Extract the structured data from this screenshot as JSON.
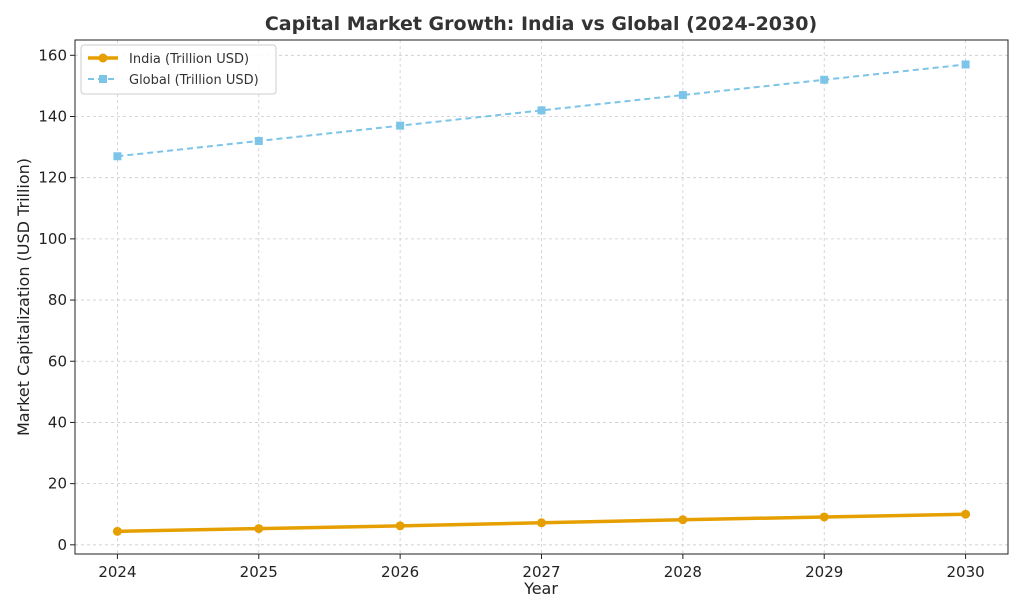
{
  "chart_data": {
    "type": "line",
    "title": "Capital Market Growth: India vs Global (2024-2030)",
    "xlabel": "Year",
    "ylabel": "Market Capitalization (USD Trillion)",
    "x": [
      2024,
      2025,
      2026,
      2027,
      2028,
      2029,
      2030
    ],
    "x_tick_labels": [
      "2024",
      "2025",
      "2026",
      "2027",
      "2028",
      "2029",
      "2030"
    ],
    "ylim": [
      -3,
      165
    ],
    "y_ticks": [
      0,
      20,
      40,
      60,
      80,
      100,
      120,
      140,
      160
    ],
    "y_tick_labels": [
      "0",
      "20",
      "40",
      "60",
      "80",
      "100",
      "120",
      "140",
      "160"
    ],
    "grid": true,
    "legend_position": "top-left",
    "series": [
      {
        "name": "India (Trillion USD)",
        "values": [
          4.4,
          5.3,
          6.2,
          7.2,
          8.2,
          9.1,
          10.0
        ],
        "color": "#E69F00",
        "line_style": "solid",
        "marker": "circle"
      },
      {
        "name": "Global (Trillion USD)",
        "values": [
          127,
          132,
          137,
          142,
          147,
          152,
          157
        ],
        "color": "#7CC4E8",
        "line_style": "dashed",
        "marker": "square"
      }
    ]
  }
}
